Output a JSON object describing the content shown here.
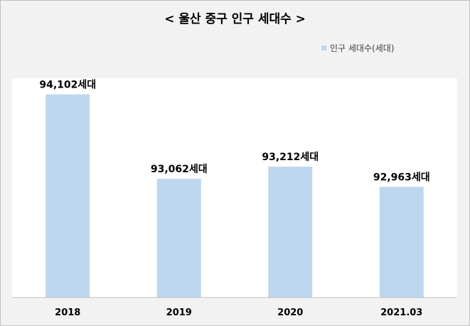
{
  "chart_data": {
    "type": "bar",
    "title": "< 울산 중구 인구 세대수 >",
    "categories": [
      "2018",
      "2019",
      "2020",
      "2021.03"
    ],
    "series": [
      {
        "name": "인구 세대수(세대)",
        "values": [
          94102,
          93062,
          93212,
          92963
        ],
        "value_labels": [
          "94,102세대",
          "93,062세대",
          "93,212세대",
          "92,963세대"
        ]
      }
    ],
    "xlabel": "",
    "ylabel": "",
    "ylim": [
      91600,
      94300
    ],
    "grid": false,
    "legend": "top-right",
    "colors": {
      "bar": "#bdd7ee",
      "plot_background": "#ffffff",
      "chart_background": "#f2f2f2",
      "axis": "#bfbfbf"
    }
  }
}
